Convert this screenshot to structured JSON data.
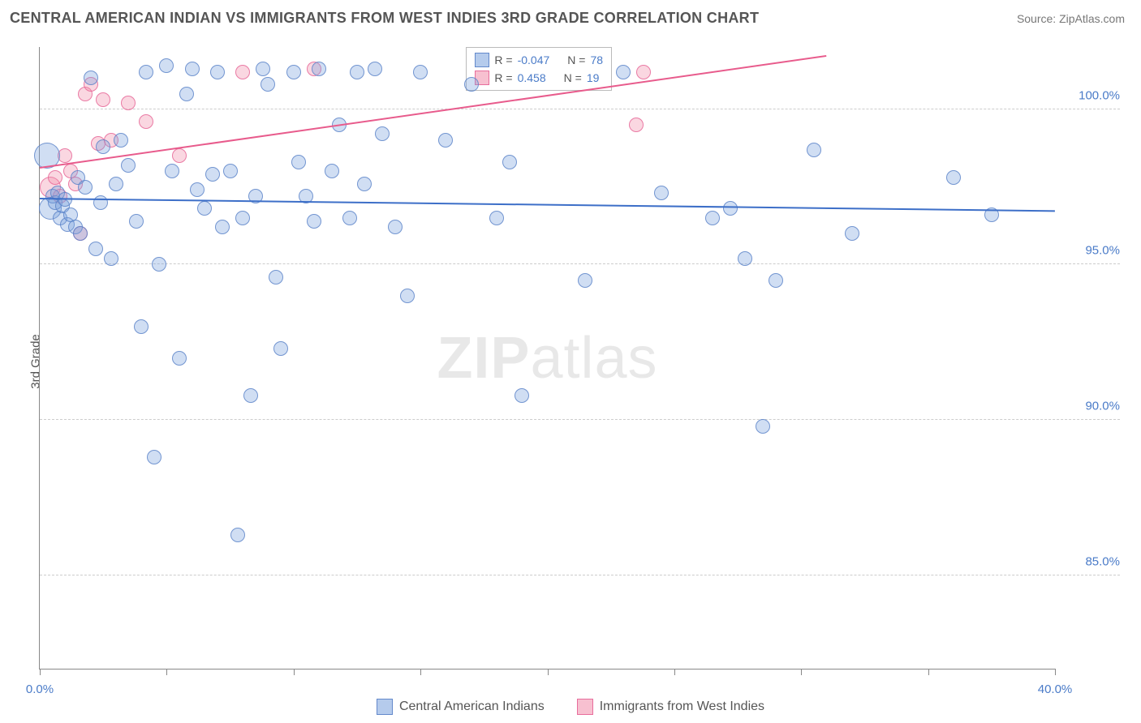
{
  "header": {
    "title": "CENTRAL AMERICAN INDIAN VS IMMIGRANTS FROM WEST INDIES 3RD GRADE CORRELATION CHART",
    "source": "Source: ZipAtlas.com"
  },
  "axes": {
    "y_label": "3rd Grade",
    "x_min": 0.0,
    "x_max": 40.0,
    "y_min": 82.0,
    "y_max": 102.0,
    "y_ticks": [
      85.0,
      90.0,
      95.0,
      100.0
    ],
    "y_tick_labels": [
      "85.0%",
      "90.0%",
      "95.0%",
      "100.0%"
    ],
    "x_ticks": [
      0.0,
      5.0,
      10.0,
      15.0,
      20.0,
      25.0,
      30.0,
      35.0,
      40.0
    ],
    "x_tick_labels_shown": {
      "0.0": "0.0%",
      "40.0": "40.0%"
    }
  },
  "watermark": {
    "zip": "ZIP",
    "rest": "atlas"
  },
  "legend_box": {
    "rows": [
      {
        "swatch": "blue",
        "r_label": "R =",
        "r_value": " -0.047",
        "n_label": "N =",
        "n_value": "78"
      },
      {
        "swatch": "pink",
        "r_label": "R =",
        "r_value": "  0.458",
        "n_label": "N =",
        "n_value": "19"
      }
    ]
  },
  "bottom_legend": {
    "items": [
      {
        "swatch": "blue",
        "label": "Central American Indians"
      },
      {
        "swatch": "pink",
        "label": "Immigrants from West Indies"
      }
    ]
  },
  "colors": {
    "blue_fill": "rgba(120,160,220,0.35)",
    "blue_stroke": "rgba(90,130,200,0.8)",
    "pink_fill": "rgba(240,140,170,0.35)",
    "pink_stroke": "rgba(230,100,150,0.8)",
    "trend_blue": "#3d6fc8",
    "trend_pink": "#e85b8c",
    "grid": "#cccccc",
    "axis": "#888888",
    "tick_text": "#4a7bc8"
  },
  "trend_lines": {
    "blue": {
      "x1": 0.0,
      "y1": 97.1,
      "x2": 40.0,
      "y2": 96.7
    },
    "pink": {
      "x1": 0.0,
      "y1": 98.1,
      "x2": 31.0,
      "y2": 101.7
    }
  },
  "point_radius_default": 9,
  "series": {
    "blue": [
      {
        "x": 0.3,
        "y": 98.5,
        "r": 16
      },
      {
        "x": 0.4,
        "y": 96.8,
        "r": 14
      },
      {
        "x": 0.5,
        "y": 97.2
      },
      {
        "x": 0.6,
        "y": 97.0
      },
      {
        "x": 0.7,
        "y": 97.3
      },
      {
        "x": 0.8,
        "y": 96.5
      },
      {
        "x": 0.9,
        "y": 96.9
      },
      {
        "x": 1.0,
        "y": 97.1
      },
      {
        "x": 1.1,
        "y": 96.3
      },
      {
        "x": 1.2,
        "y": 96.6
      },
      {
        "x": 1.4,
        "y": 96.2
      },
      {
        "x": 1.5,
        "y": 97.8
      },
      {
        "x": 1.6,
        "y": 96.0
      },
      {
        "x": 1.8,
        "y": 97.5
      },
      {
        "x": 2.0,
        "y": 101.0
      },
      {
        "x": 2.2,
        "y": 95.5
      },
      {
        "x": 2.4,
        "y": 97.0
      },
      {
        "x": 2.5,
        "y": 98.8
      },
      {
        "x": 2.8,
        "y": 95.2
      },
      {
        "x": 3.0,
        "y": 97.6
      },
      {
        "x": 3.2,
        "y": 99.0
      },
      {
        "x": 3.5,
        "y": 98.2
      },
      {
        "x": 3.8,
        "y": 96.4
      },
      {
        "x": 4.0,
        "y": 93.0
      },
      {
        "x": 4.2,
        "y": 101.2
      },
      {
        "x": 4.5,
        "y": 88.8
      },
      {
        "x": 4.7,
        "y": 95.0
      },
      {
        "x": 5.0,
        "y": 101.4
      },
      {
        "x": 5.2,
        "y": 98.0
      },
      {
        "x": 5.5,
        "y": 92.0
      },
      {
        "x": 5.8,
        "y": 100.5
      },
      {
        "x": 6.0,
        "y": 101.3
      },
      {
        "x": 6.2,
        "y": 97.4
      },
      {
        "x": 6.5,
        "y": 96.8
      },
      {
        "x": 6.8,
        "y": 97.9
      },
      {
        "x": 7.0,
        "y": 101.2
      },
      {
        "x": 7.2,
        "y": 96.2
      },
      {
        "x": 7.5,
        "y": 98.0
      },
      {
        "x": 7.8,
        "y": 86.3
      },
      {
        "x": 8.0,
        "y": 96.5
      },
      {
        "x": 8.3,
        "y": 90.8
      },
      {
        "x": 8.5,
        "y": 97.2
      },
      {
        "x": 8.8,
        "y": 101.3
      },
      {
        "x": 9.0,
        "y": 100.8
      },
      {
        "x": 9.3,
        "y": 94.6
      },
      {
        "x": 9.5,
        "y": 92.3
      },
      {
        "x": 10.0,
        "y": 101.2
      },
      {
        "x": 10.2,
        "y": 98.3
      },
      {
        "x": 10.5,
        "y": 97.2
      },
      {
        "x": 10.8,
        "y": 96.4
      },
      {
        "x": 11.0,
        "y": 101.3
      },
      {
        "x": 11.5,
        "y": 98.0
      },
      {
        "x": 11.8,
        "y": 99.5
      },
      {
        "x": 12.2,
        "y": 96.5
      },
      {
        "x": 12.5,
        "y": 101.2
      },
      {
        "x": 12.8,
        "y": 97.6
      },
      {
        "x": 13.2,
        "y": 101.3
      },
      {
        "x": 13.5,
        "y": 99.2
      },
      {
        "x": 14.0,
        "y": 96.2
      },
      {
        "x": 14.5,
        "y": 94.0
      },
      {
        "x": 15.0,
        "y": 101.2
      },
      {
        "x": 16.0,
        "y": 99.0
      },
      {
        "x": 17.0,
        "y": 100.8
      },
      {
        "x": 18.0,
        "y": 96.5
      },
      {
        "x": 18.5,
        "y": 98.3
      },
      {
        "x": 19.0,
        "y": 90.8
      },
      {
        "x": 21.5,
        "y": 94.5
      },
      {
        "x": 23.0,
        "y": 101.2
      },
      {
        "x": 24.5,
        "y": 97.3
      },
      {
        "x": 26.5,
        "y": 96.5
      },
      {
        "x": 27.2,
        "y": 96.8
      },
      {
        "x": 27.8,
        "y": 95.2
      },
      {
        "x": 28.5,
        "y": 89.8
      },
      {
        "x": 29.0,
        "y": 94.5
      },
      {
        "x": 30.5,
        "y": 98.7
      },
      {
        "x": 32.0,
        "y": 96.0
      },
      {
        "x": 36.0,
        "y": 97.8
      },
      {
        "x": 37.5,
        "y": 96.6
      }
    ],
    "pink": [
      {
        "x": 0.4,
        "y": 97.5,
        "r": 13
      },
      {
        "x": 0.6,
        "y": 97.8
      },
      {
        "x": 0.8,
        "y": 97.2
      },
      {
        "x": 1.0,
        "y": 98.5
      },
      {
        "x": 1.2,
        "y": 98.0
      },
      {
        "x": 1.4,
        "y": 97.6
      },
      {
        "x": 1.6,
        "y": 96.0
      },
      {
        "x": 1.8,
        "y": 100.5
      },
      {
        "x": 2.0,
        "y": 100.8
      },
      {
        "x": 2.3,
        "y": 98.9
      },
      {
        "x": 2.5,
        "y": 100.3
      },
      {
        "x": 2.8,
        "y": 99.0
      },
      {
        "x": 3.5,
        "y": 100.2
      },
      {
        "x": 4.2,
        "y": 99.6
      },
      {
        "x": 5.5,
        "y": 98.5
      },
      {
        "x": 8.0,
        "y": 101.2
      },
      {
        "x": 10.8,
        "y": 101.3
      },
      {
        "x": 23.5,
        "y": 99.5
      },
      {
        "x": 23.8,
        "y": 101.2
      }
    ]
  }
}
